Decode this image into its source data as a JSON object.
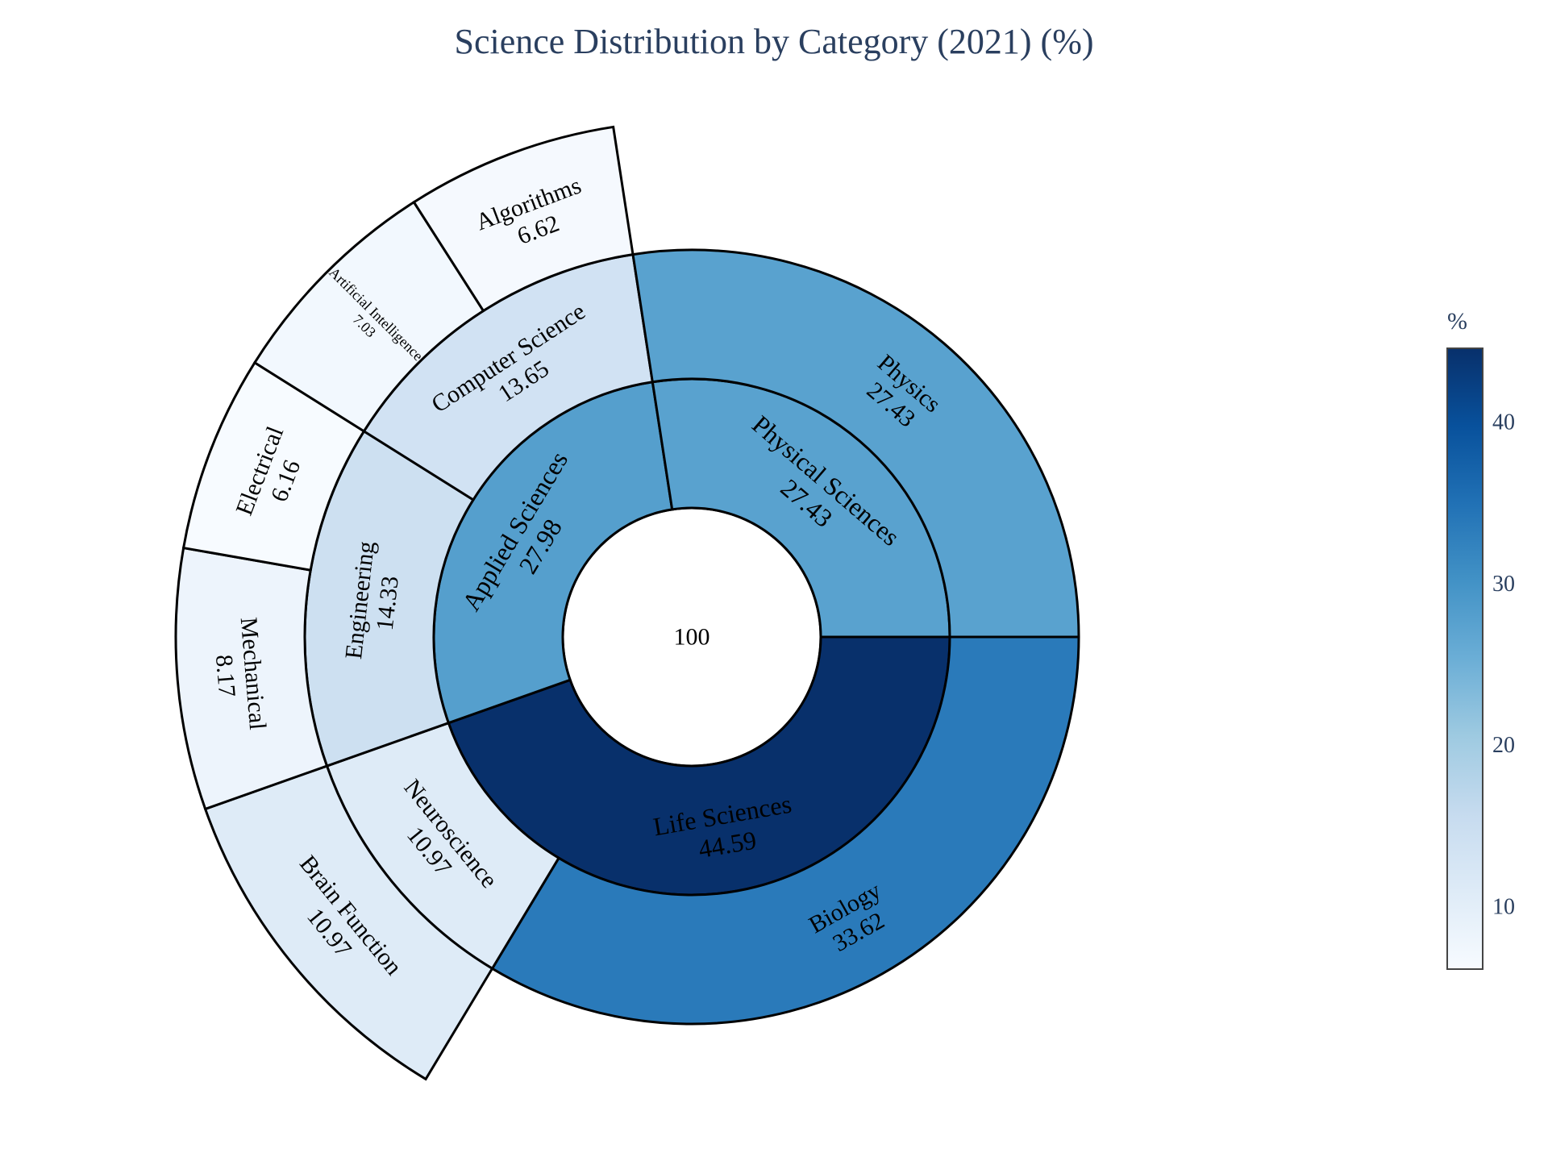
{
  "chart_data": {
    "type": "sunburst",
    "title": "Science Distribution by Category (2021) (%)",
    "root": {
      "label": "",
      "value": 100
    },
    "nodes": [
      {
        "id": "life",
        "parent": "root",
        "label": "Life Sciences",
        "value": 44.59
      },
      {
        "id": "applied",
        "parent": "root",
        "label": "Applied Sciences",
        "value": 27.98
      },
      {
        "id": "physical",
        "parent": "root",
        "label": "Physical Sciences",
        "value": 27.43
      },
      {
        "id": "biology",
        "parent": "life",
        "label": "Biology",
        "value": 33.62
      },
      {
        "id": "neuro",
        "parent": "life",
        "label": "Neuroscience",
        "value": 10.97
      },
      {
        "id": "eng",
        "parent": "applied",
        "label": "Engineering",
        "value": 14.33
      },
      {
        "id": "cs",
        "parent": "applied",
        "label": "Computer Science",
        "value": 13.65
      },
      {
        "id": "physics",
        "parent": "physical",
        "label": "Physics",
        "value": 27.43
      },
      {
        "id": "brain",
        "parent": "neuro",
        "label": "Brain Function",
        "value": 10.97
      },
      {
        "id": "mech",
        "parent": "eng",
        "label": "Mechanical",
        "value": 8.17
      },
      {
        "id": "elec",
        "parent": "eng",
        "label": "Electrical",
        "value": 6.16
      },
      {
        "id": "ai",
        "parent": "cs",
        "label": "Artificial Intelligence",
        "value": 7.03
      },
      {
        "id": "algo",
        "parent": "cs",
        "label": "Algorithms",
        "value": 6.62
      }
    ],
    "colorscale": {
      "name": "Blues",
      "min": 6.16,
      "max": 44.59
    },
    "colorbar": {
      "title": "%",
      "ticks": [
        10,
        20,
        30,
        40
      ]
    }
  }
}
